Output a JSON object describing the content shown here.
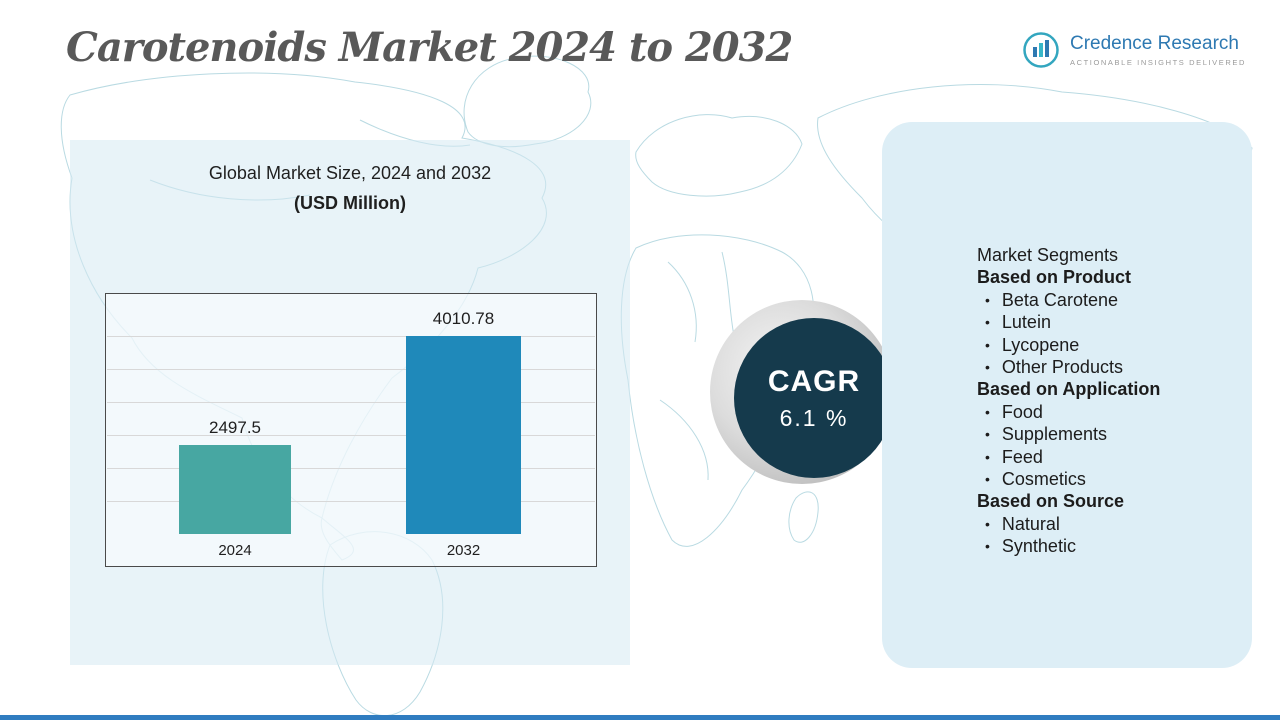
{
  "title": "Carotenoids Market 2024 to 2032",
  "logo": {
    "name": "Credence Research",
    "tagline": "ACTIONABLE INSIGHTS DELIVERED"
  },
  "chart": {
    "title_line1": "Global Market Size, 2024 and 2032",
    "title_line2": "(USD Million)"
  },
  "chart_data": {
    "type": "bar",
    "title": "Global Market Size, 2024 and 2032 (USD Million)",
    "categories": [
      "2024",
      "2032"
    ],
    "values": [
      2497.5,
      4010.78
    ],
    "xlabel": "",
    "ylabel": "",
    "ylim": [
      1250,
      4600
    ],
    "grid": true,
    "legend": "none",
    "bar_colors": [
      "#47a7a2",
      "#1f89ba"
    ]
  },
  "cagr": {
    "label": "CAGR",
    "value": "6.1 %"
  },
  "segments": {
    "heading": "Market Segments",
    "bullet": "•",
    "groups": [
      {
        "label": "Based on Product",
        "items": [
          "Beta Carotene",
          "Lutein",
          "Lycopene",
          "Other Products"
        ]
      },
      {
        "label": "Based on Application",
        "items": [
          "Food",
          "Supplements",
          "Feed",
          "Cosmetics"
        ]
      },
      {
        "label": "Based on Source",
        "items": [
          "Natural",
          "Synthetic"
        ]
      }
    ]
  },
  "colors": {
    "bar_2024": "#47a7a2",
    "bar_2032": "#1f89ba",
    "cagr_circle": "#153a4c",
    "panel_background": "#ddeef6",
    "map_stroke": "#b9dae2",
    "title_gray": "#595959",
    "logo_blue": "#2e79b2",
    "bottom_bar_blue": "#2f7cc0"
  }
}
